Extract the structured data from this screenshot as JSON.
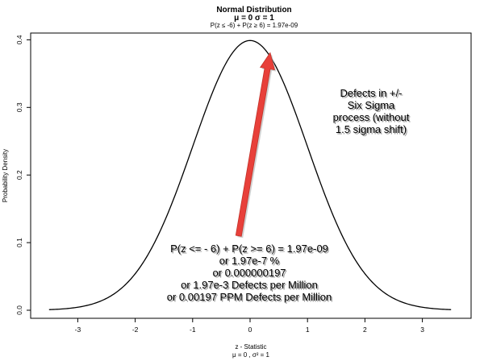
{
  "chart_data": {
    "type": "line",
    "title": "Normal Distribution",
    "title_line2": "μ = 0   σ = 1",
    "subtitle": "P(z ≤ -6) + P(z ≥ 6) = 1.97e-09",
    "xlabel": "z - Statistic",
    "xlabel_line2": "μ = 0 , σ² = 1",
    "ylabel": "Probability Density",
    "xlim": [
      -3.5,
      3.5
    ],
    "ylim": [
      0,
      0.4
    ],
    "x_ticks": [
      -3,
      -2,
      -1,
      0,
      1,
      2,
      3
    ],
    "x_tick_labels": [
      "-3",
      "-2",
      "-1",
      "0",
      "1",
      "2",
      "3"
    ],
    "y_ticks": [
      0,
      0.1,
      0.2,
      0.3,
      0.4
    ],
    "y_tick_labels": [
      "0.0",
      "0.1",
      "0.2",
      "0.3",
      "0.4"
    ],
    "series": [
      {
        "curve": "standard normal density",
        "mean": 0,
        "sd": 1,
        "x_range": [
          -3.5,
          3.5
        ],
        "color": "#000000"
      }
    ],
    "grid": false,
    "annotations": {
      "right_note": [
        "Defects in +/-",
        "Six Sigma",
        "process (without",
        "1.5 sigma shift)"
      ],
      "bottom_note": [
        "P(z <= - 6) + P(z >= 6) = 1.97e-09",
        "or 1.97e-7 %",
        "or 0.000000197",
        "or 1.97e-3 Defects per Million",
        "or 0.00197 PPM Defects per Million"
      ],
      "arrow": {
        "from": [
          -0.2,
          0.11
        ],
        "to": [
          0.35,
          0.4
        ],
        "color": "#e8403a"
      }
    }
  }
}
